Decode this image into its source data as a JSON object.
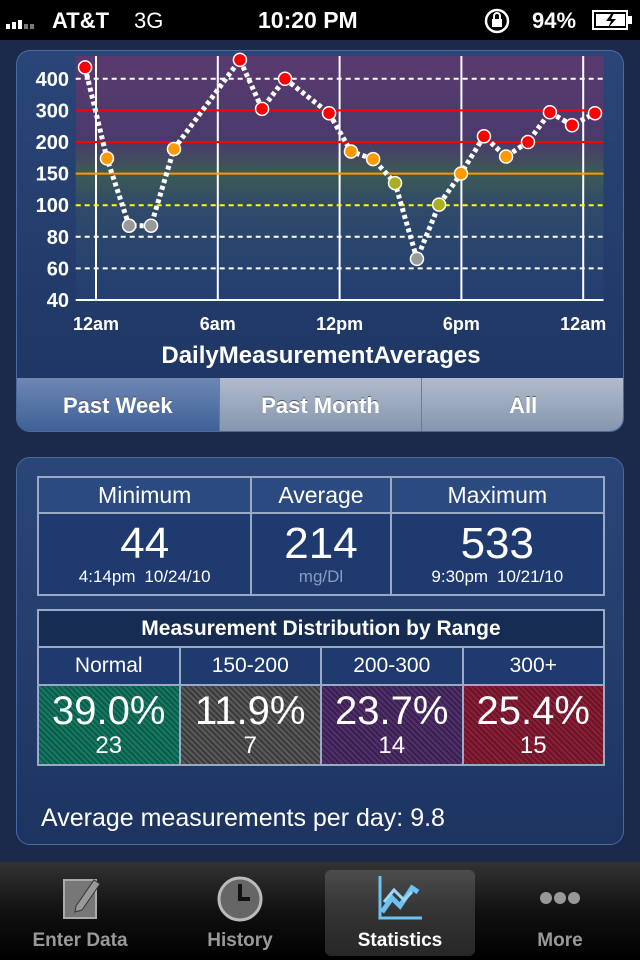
{
  "status_bar": {
    "carrier": "AT&T",
    "network": "3G",
    "time": "10:20 PM",
    "battery": "94%"
  },
  "chart_data": {
    "type": "line",
    "title": "DailyMeasurementAverages",
    "x": [
      -0.54,
      0.54,
      1.63,
      2.71,
      3.84,
      7.09,
      8.18,
      9.31,
      11.48,
      12.56,
      13.65,
      14.73,
      15.81,
      16.9,
      17.98,
      19.11,
      20.2,
      21.28,
      22.36,
      23.45,
      24.58
    ],
    "values": [
      480,
      174,
      87,
      87,
      189,
      533,
      305,
      400,
      291,
      185,
      173,
      135,
      66,
      101,
      150,
      218,
      177,
      200,
      294,
      253,
      291
    ],
    "point_colors": [
      "#ff0000",
      "#ff9900",
      "#999999",
      "#999999",
      "#ff9900",
      "#ff0000",
      "#ff0000",
      "#ff0000",
      "#ff0000",
      "#ff9900",
      "#ff9900",
      "#a8b020",
      "#999999",
      "#a8b020",
      "#ff9900",
      "#ff0000",
      "#ff9900",
      "#ff0000",
      "#ff0000",
      "#ff0000",
      "#ff0000"
    ],
    "line_color": "#ffffff",
    "xlim": [
      -1,
      25
    ],
    "xticks": [
      {
        "value": 0,
        "label": "12am"
      },
      {
        "value": 6,
        "label": "6am"
      },
      {
        "value": 12,
        "label": "12pm"
      },
      {
        "value": 18,
        "label": "6pm"
      },
      {
        "value": 24,
        "label": "12am"
      }
    ],
    "ylim": [
      40,
      560
    ],
    "yticks": [
      40,
      60,
      80,
      100,
      150,
      200,
      300,
      400
    ],
    "grid_colors": [
      "#ffffff",
      "#ffffff",
      "#ffffff",
      "#ffff00",
      "#ff9900",
      "#ff0000",
      "#ff0000",
      "#ffffff"
    ],
    "grid_dashed": [
      false,
      true,
      true,
      true,
      false,
      false,
      false,
      true
    ]
  },
  "segments": {
    "options": [
      "Past Week",
      "Past Month",
      "All"
    ],
    "selected": 0
  },
  "summary": {
    "minimum": {
      "label": "Minimum",
      "value": "44",
      "time": "4:14pm",
      "date": "10/24/10"
    },
    "average": {
      "label": "Average",
      "value": "214",
      "unit": "mg/Dl"
    },
    "maximum": {
      "label": "Maximum",
      "value": "533",
      "time": "9:30pm",
      "date": "10/21/10"
    }
  },
  "distribution": {
    "title": "Measurement Distribution by Range",
    "ranges": [
      {
        "label": "Normal",
        "percent": "39.0%",
        "count": "23"
      },
      {
        "label": "150-200",
        "percent": "11.9%",
        "count": "7"
      },
      {
        "label": "200-300",
        "percent": "23.7%",
        "count": "14"
      },
      {
        "label": "300+",
        "percent": "25.4%",
        "count": "15"
      }
    ]
  },
  "footer": {
    "label": "Average measurements per day:",
    "value": "9.8"
  },
  "tabs": {
    "items": [
      "Enter Data",
      "History",
      "Statistics",
      "More"
    ],
    "selected": 2
  }
}
